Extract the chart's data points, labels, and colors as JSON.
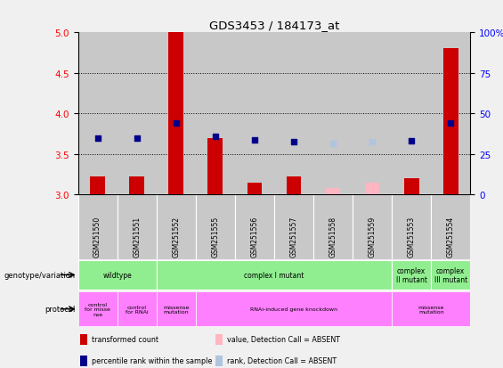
{
  "title": "GDS3453 / 184173_at",
  "samples": [
    "GSM251550",
    "GSM251551",
    "GSM251552",
    "GSM251555",
    "GSM251556",
    "GSM251557",
    "GSM251558",
    "GSM251559",
    "GSM251553",
    "GSM251554"
  ],
  "red_values": [
    3.22,
    3.22,
    5.0,
    3.7,
    3.15,
    3.22,
    3.08,
    3.15,
    3.2,
    4.8
  ],
  "blue_values": [
    3.7,
    3.7,
    3.88,
    3.72,
    3.67,
    3.65,
    3.63,
    3.65,
    3.66,
    3.88
  ],
  "absent_mask": [
    false,
    false,
    false,
    false,
    false,
    false,
    true,
    true,
    false,
    false
  ],
  "ylim_left": [
    3.0,
    5.0
  ],
  "ylim_right": [
    0,
    100
  ],
  "yticks_left": [
    3.0,
    3.5,
    4.0,
    4.5,
    5.0
  ],
  "yticks_right": [
    0,
    25,
    50,
    75,
    100
  ],
  "dotted_lines": [
    3.5,
    4.0,
    4.5
  ],
  "bar_bottom": 3.0,
  "genotype_row": [
    {
      "label": "wildtype",
      "start": 0,
      "end": 2
    },
    {
      "label": "complex I mutant",
      "start": 2,
      "end": 8
    },
    {
      "label": "complex\nII mutant",
      "start": 8,
      "end": 9
    },
    {
      "label": "complex\nIII mutant",
      "start": 9,
      "end": 10
    }
  ],
  "protocol_row": [
    {
      "label": "control\nfor misse\nnse",
      "start": 0,
      "end": 1
    },
    {
      "label": "control\nfor RNAi",
      "start": 1,
      "end": 2
    },
    {
      "label": "missense\nmutation",
      "start": 2,
      "end": 3
    },
    {
      "label": "RNAi-induced gene knockdown",
      "start": 3,
      "end": 8
    },
    {
      "label": "missense\nmutation",
      "start": 8,
      "end": 10
    }
  ],
  "legend_items": [
    {
      "color": "#CC0000",
      "label": "transformed count"
    },
    {
      "color": "#00008B",
      "label": "percentile rank within the sample"
    },
    {
      "color": "#FFB6C1",
      "label": "value, Detection Call = ABSENT"
    },
    {
      "color": "#B0C4DE",
      "label": "rank, Detection Call = ABSENT"
    }
  ],
  "bar_color_normal": "#CC0000",
  "bar_color_absent": "#FFB6C1",
  "dot_color_normal": "#00008B",
  "dot_color_absent": "#B0C4DE",
  "bg_color": "#C8C8C8",
  "plot_bg": "#FFFFFF",
  "geno_color": "#90EE90",
  "proto_color": "#FF80FF",
  "fig_bg": "#F0F0F0"
}
